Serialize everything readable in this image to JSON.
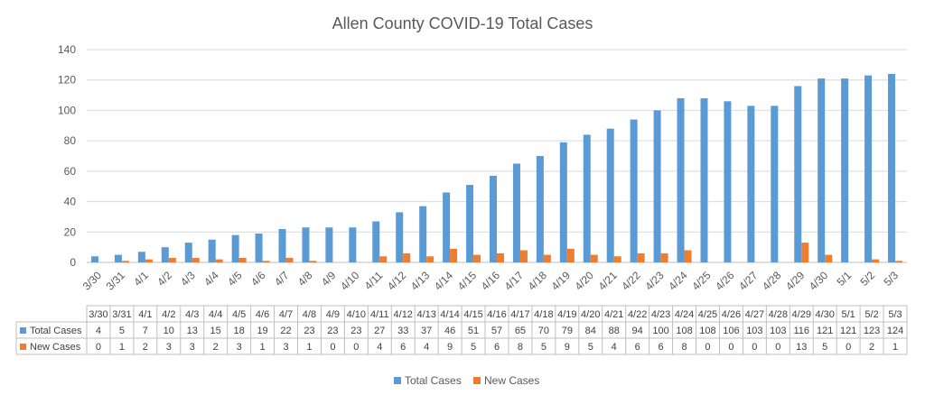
{
  "chart_data": {
    "type": "bar",
    "title": "Allen County COVID-19 Total Cases",
    "categories": [
      "3/30",
      "3/31",
      "4/1",
      "4/2",
      "4/3",
      "4/4",
      "4/5",
      "4/6",
      "4/7",
      "4/8",
      "4/9",
      "4/10",
      "4/11",
      "4/12",
      "4/13",
      "4/14",
      "4/15",
      "4/16",
      "4/17",
      "4/18",
      "4/19",
      "4/20",
      "4/21",
      "4/22",
      "4/23",
      "4/24",
      "4/25",
      "4/26",
      "4/27",
      "4/28",
      "4/29",
      "4/30",
      "5/1",
      "5/2",
      "5/3"
    ],
    "series": [
      {
        "name": "Total Cases",
        "color": "#5b9bd5",
        "values": [
          4,
          5,
          7,
          10,
          13,
          15,
          18,
          19,
          22,
          23,
          23,
          23,
          27,
          33,
          37,
          46,
          51,
          57,
          65,
          70,
          79,
          84,
          88,
          94,
          100,
          108,
          108,
          106,
          103,
          103,
          116,
          121,
          121,
          123,
          124
        ]
      },
      {
        "name": "New Cases",
        "color": "#ed7d31",
        "values": [
          0,
          1,
          2,
          3,
          3,
          2,
          3,
          1,
          3,
          1,
          0,
          0,
          4,
          6,
          4,
          9,
          5,
          6,
          8,
          5,
          9,
          5,
          4,
          6,
          6,
          8,
          0,
          0,
          0,
          0,
          13,
          5,
          0,
          2,
          1
        ]
      }
    ],
    "ylim": [
      0,
      140
    ],
    "yticks": [
      0,
      20,
      40,
      60,
      80,
      100,
      120,
      140
    ],
    "grid": true,
    "legend": "bottom",
    "data_table": true
  }
}
